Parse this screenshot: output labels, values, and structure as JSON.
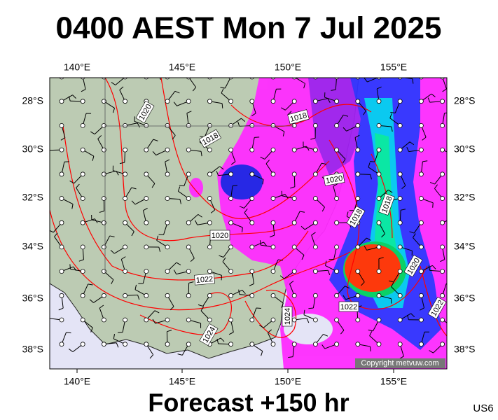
{
  "title": "0400 AEST Mon 7 Jul 2025",
  "map": {
    "lon_labels": [
      "140°E",
      "145°E",
      "150°E",
      "155°E"
    ],
    "lat_labels": [
      "28°S",
      "30°S",
      "32°S",
      "34°S",
      "36°S",
      "38°S"
    ],
    "isobar_labels": [
      "1020",
      "1018",
      "1018",
      "1020",
      "1018",
      "1018",
      "1020",
      "1022",
      "1020",
      "1022",
      "1024",
      "1024",
      "1022"
    ],
    "copyright": "Copyright metvuw.com"
  },
  "footer": "Forecast +150 hr",
  "code": "US6"
}
